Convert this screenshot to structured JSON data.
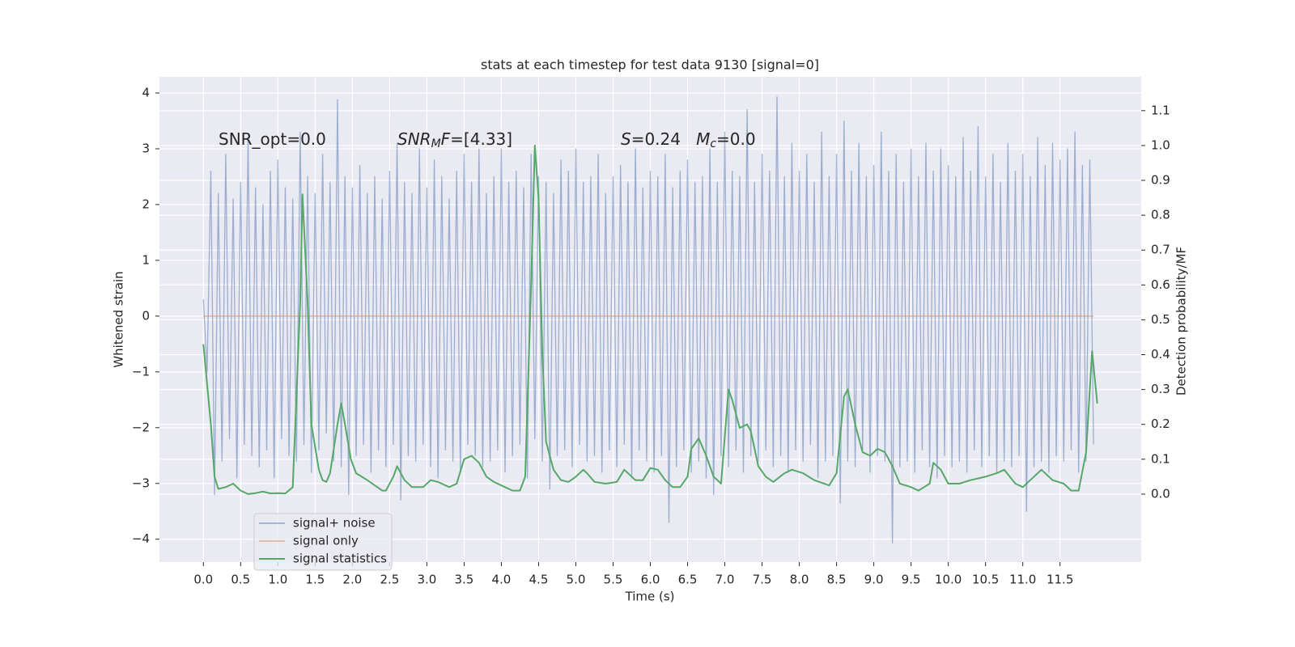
{
  "chart_data": {
    "type": "line",
    "title": "stats at each timestep for test data 9130 [signal=0]",
    "xlabel": "Time (s)",
    "ylabel": "Whitened strain",
    "y2label": "Detection probability/MF",
    "xlim": [
      -0.59,
      12.59
    ],
    "ylim": [
      -4.41,
      4.29
    ],
    "y2lim": [
      -0.195,
      1.197
    ],
    "xticks": [
      {
        "value": 0,
        "label": "0.0"
      },
      0.5,
      {
        "value": 1,
        "label": "1.0"
      },
      1.5,
      {
        "value": 2,
        "label": "2.0"
      },
      2.5,
      {
        "value": 3,
        "label": "3.0"
      },
      3.5,
      {
        "value": 4,
        "label": "4.0"
      },
      4.5,
      {
        "value": 5,
        "label": "5.0"
      },
      5.5,
      {
        "value": 6,
        "label": "6.0"
      },
      6.5,
      {
        "value": 7,
        "label": "7.0"
      },
      7.5,
      {
        "value": 8,
        "label": "8.0"
      },
      8.5,
      {
        "value": 9,
        "label": "9.0"
      },
      9.5,
      {
        "value": 10,
        "label": "10.0"
      },
      10.5,
      {
        "value": 11,
        "label": "11.0"
      },
      11.5
    ],
    "yticks": [
      {
        "value": -4,
        "label": "−4"
      },
      {
        "value": -3,
        "label": "−3"
      },
      {
        "value": -2,
        "label": "−2"
      },
      {
        "value": -1,
        "label": "−1"
      },
      0,
      1,
      2,
      3,
      4
    ],
    "y2ticks": [
      {
        "value": 0,
        "label": "0.0"
      },
      0.1,
      0.2,
      0.3,
      0.4,
      0.5,
      0.6,
      0.7,
      0.8,
      0.9,
      {
        "value": 1,
        "label": "1.0"
      },
      1.1
    ],
    "grid": true,
    "legend_loc": "lower left",
    "annotations": [
      [
        {
          "text": "SNR_opt=0.0"
        }
      ],
      [
        {
          "text": "SNR",
          "italic": true
        },
        {
          "text": "M",
          "italic": true,
          "sub": true
        },
        {
          "text": "F",
          "italic": true
        },
        {
          "text": "=[4.33]"
        }
      ],
      [
        {
          "text": "S",
          "italic": true
        },
        {
          "text": "=0.24   "
        },
        {
          "text": "M",
          "italic": true
        },
        {
          "text": "c",
          "italic": true,
          "sub": true
        },
        {
          "text": "=0.0"
        }
      ]
    ],
    "series": [
      {
        "name": "signal+ noise",
        "color": "#4c72b0",
        "x": [
          0,
          0.05,
          0.1,
          0.15,
          0.2,
          0.25,
          0.3,
          0.35,
          0.4,
          0.45,
          0.5,
          0.55,
          0.6,
          0.65,
          0.7,
          0.75,
          0.8,
          0.85,
          0.9,
          0.95,
          1,
          1.05,
          1.1,
          1.15,
          1.2,
          1.25,
          1.3,
          1.35,
          1.4,
          1.45,
          1.5,
          1.55,
          1.6,
          1.65,
          1.7,
          1.75,
          1.8,
          1.85,
          1.9,
          1.95,
          2,
          2.05,
          2.1,
          2.15,
          2.2,
          2.25,
          2.3,
          2.35,
          2.4,
          2.45,
          2.5,
          2.55,
          2.6,
          2.65,
          2.7,
          2.75,
          2.8,
          2.85,
          2.9,
          2.95,
          3,
          3.05,
          3.1,
          3.15,
          3.2,
          3.25,
          3.3,
          3.35,
          3.4,
          3.45,
          3.5,
          3.55,
          3.6,
          3.65,
          3.7,
          3.75,
          3.8,
          3.85,
          3.9,
          3.95,
          4,
          4.05,
          4.1,
          4.15,
          4.2,
          4.25,
          4.3,
          4.35,
          4.4,
          4.45,
          4.5,
          4.55,
          4.6,
          4.65,
          4.7,
          4.75,
          4.8,
          4.85,
          4.9,
          4.95,
          5,
          5.05,
          5.1,
          5.15,
          5.2,
          5.25,
          5.3,
          5.35,
          5.4,
          5.45,
          5.5,
          5.55,
          5.6,
          5.65,
          5.7,
          5.75,
          5.8,
          5.85,
          5.9,
          5.95,
          6,
          6.05,
          6.1,
          6.15,
          6.2,
          6.25,
          6.3,
          6.35,
          6.4,
          6.45,
          6.5,
          6.55,
          6.6,
          6.65,
          6.7,
          6.75,
          6.8,
          6.85,
          6.9,
          6.95,
          7,
          7.05,
          7.1,
          7.15,
          7.2,
          7.25,
          7.3,
          7.35,
          7.4,
          7.45,
          7.5,
          7.55,
          7.6,
          7.65,
          7.7,
          7.75,
          7.8,
          7.85,
          7.9,
          7.95,
          8,
          8.05,
          8.1,
          8.15,
          8.2,
          8.25,
          8.3,
          8.35,
          8.4,
          8.45,
          8.5,
          8.55,
          8.6,
          8.65,
          8.7,
          8.75,
          8.8,
          8.85,
          8.9,
          8.95,
          9,
          9.05,
          9.1,
          9.15,
          9.2,
          9.25,
          9.3,
          9.35,
          9.4,
          9.45,
          9.5,
          9.55,
          9.6,
          9.65,
          9.7,
          9.75,
          9.8,
          9.85,
          9.9,
          9.95,
          10,
          10.05,
          10.1,
          10.15,
          10.2,
          10.25,
          10.3,
          10.35,
          10.4,
          10.45,
          10.5,
          10.55,
          10.6,
          10.65,
          10.7,
          10.75,
          10.8,
          10.85,
          10.9,
          10.95,
          11,
          11.05,
          11.1,
          11.15,
          11.2,
          11.25,
          11.3,
          11.35,
          11.4,
          11.45,
          11.5,
          11.55,
          11.6,
          11.65,
          11.7,
          11.75,
          11.8,
          11.85,
          11.9,
          11.95
        ],
        "values": [
          0.3,
          -1.0,
          2.6,
          -3.2,
          2.2,
          -2.6,
          2.9,
          -2.2,
          2.1,
          -2.9,
          2.4,
          -2.3,
          3.2,
          -2.5,
          2.3,
          -2.7,
          2.0,
          -2.4,
          2.6,
          -2.9,
          2.8,
          -2.2,
          2.3,
          -2.5,
          2.1,
          -2.6,
          3.3,
          -2.3,
          2.5,
          -2.8,
          2.2,
          -2.4,
          2.9,
          -2.1,
          2.4,
          -2.6,
          3.88,
          -2.7,
          2.5,
          -3.2,
          2.3,
          -2.5,
          2.7,
          -2.3,
          2.2,
          -2.8,
          2.5,
          -2.4,
          2.1,
          -2.7,
          2.6,
          -2.3,
          3.1,
          -3.3,
          2.4,
          -2.5,
          2.2,
          -2.6,
          3.0,
          -2.3,
          2.3,
          -2.7,
          2.8,
          -2.9,
          2.5,
          -2.4,
          2.1,
          -2.6,
          2.6,
          -2.8,
          2.9,
          -2.3,
          2.4,
          -2.5,
          3.0,
          -2.7,
          2.2,
          -2.6,
          2.5,
          -2.4,
          3.0,
          -2.8,
          2.4,
          -2.5,
          2.6,
          -2.3,
          2.3,
          -2.9,
          2.9,
          -2.2,
          2.5,
          -2.6,
          2.4,
          -3.1,
          2.2,
          -2.5,
          2.8,
          -2.4,
          2.6,
          -2.7,
          3.0,
          -2.3,
          2.4,
          -2.6,
          2.5,
          -2.5,
          2.9,
          -2.8,
          2.2,
          -2.4,
          2.5,
          -2.7,
          2.7,
          -2.3,
          2.4,
          -2.9,
          3.0,
          -2.4,
          2.3,
          -2.6,
          2.6,
          -2.8,
          2.5,
          -2.5,
          2.9,
          -3.7,
          2.3,
          -2.7,
          2.6,
          -2.4,
          2.8,
          -2.8,
          2.4,
          -2.6,
          2.5,
          -2.9,
          3.0,
          -3.2,
          2.4,
          -2.5,
          3.3,
          -2.7,
          2.6,
          -2.4,
          2.5,
          -2.8,
          3.7,
          -2.5,
          2.4,
          -2.6,
          2.9,
          -2.4,
          2.6,
          -2.7,
          3.93,
          -2.5,
          2.5,
          -2.8,
          3.1,
          -2.4,
          2.6,
          -2.6,
          2.9,
          -2.3,
          2.4,
          -2.9,
          3.3,
          -2.6,
          2.5,
          -2.5,
          2.9,
          -3.35,
          3.5,
          -2.6,
          2.6,
          -2.7,
          3.1,
          -2.4,
          2.5,
          -2.8,
          2.7,
          -2.5,
          3.3,
          -2.6,
          2.6,
          -4.07,
          2.9,
          -2.7,
          2.4,
          -2.6,
          3.0,
          -2.8,
          2.5,
          -2.4,
          3.1,
          -2.7,
          2.6,
          -2.9,
          3.0,
          -2.5,
          2.7,
          -2.7,
          2.5,
          -2.6,
          3.2,
          -2.8,
          2.6,
          -2.4,
          3.4,
          -2.7,
          2.5,
          -2.5,
          2.9,
          -2.8,
          2.4,
          -2.6,
          3.1,
          -2.7,
          2.6,
          -2.5,
          2.9,
          -3.5,
          2.5,
          -2.7,
          3.2,
          -2.6,
          2.7,
          -2.8,
          3.1,
          -2.5,
          2.8,
          -2.6,
          3.0,
          -2.4,
          3.3,
          -2.8,
          2.7,
          -2.6,
          2.8,
          -2.3
        ]
      },
      {
        "name": "signal only",
        "color": "#dd8452",
        "x": [
          0,
          11.95
        ],
        "values": [
          0,
          0
        ]
      },
      {
        "name": "signal statistics",
        "color": "#55a868",
        "axis": "y2",
        "x": [
          0,
          0.1,
          0.15,
          0.2,
          0.3,
          0.4,
          0.5,
          0.6,
          0.7,
          0.8,
          0.9,
          1.0,
          1.1,
          1.2,
          1.3,
          1.33,
          1.4,
          1.45,
          1.55,
          1.6,
          1.65,
          1.7,
          1.8,
          1.85,
          1.9,
          1.98,
          2.05,
          2.2,
          2.4,
          2.45,
          2.55,
          2.6,
          2.7,
          2.8,
          2.95,
          3.05,
          3.15,
          3.3,
          3.4,
          3.5,
          3.6,
          3.7,
          3.8,
          3.9,
          4.05,
          4.15,
          4.25,
          4.32,
          4.4,
          4.45,
          4.5,
          4.55,
          4.6,
          4.7,
          4.8,
          4.9,
          5.0,
          5.1,
          5.15,
          5.25,
          5.4,
          5.55,
          5.65,
          5.8,
          5.9,
          6.0,
          6.1,
          6.2,
          6.3,
          6.4,
          6.5,
          6.55,
          6.65,
          6.75,
          6.85,
          6.95,
          7.05,
          7.1,
          7.2,
          7.3,
          7.35,
          7.45,
          7.55,
          7.65,
          7.8,
          7.9,
          8.05,
          8.2,
          8.4,
          8.5,
          8.6,
          8.65,
          8.75,
          8.85,
          8.95,
          9.05,
          9.15,
          9.25,
          9.35,
          9.5,
          9.6,
          9.75,
          9.8,
          9.9,
          10.0,
          10.15,
          10.3,
          10.5,
          10.65,
          10.75,
          10.9,
          11.0,
          11.1,
          11.25,
          11.4,
          11.55,
          11.65,
          11.75,
          11.85,
          11.93,
          12.0
        ],
        "values": [
          0.43,
          0.2,
          0.05,
          0.015,
          0.02,
          0.03,
          0.01,
          0.0,
          0.003,
          0.007,
          0.002,
          0.003,
          0.002,
          0.02,
          0.55,
          0.86,
          0.55,
          0.2,
          0.07,
          0.04,
          0.035,
          0.06,
          0.2,
          0.26,
          0.2,
          0.1,
          0.06,
          0.04,
          0.01,
          0.01,
          0.05,
          0.08,
          0.04,
          0.02,
          0.02,
          0.04,
          0.035,
          0.02,
          0.03,
          0.1,
          0.11,
          0.09,
          0.05,
          0.035,
          0.02,
          0.01,
          0.01,
          0.05,
          0.6,
          1.0,
          0.85,
          0.4,
          0.15,
          0.07,
          0.04,
          0.035,
          0.05,
          0.07,
          0.06,
          0.035,
          0.03,
          0.035,
          0.07,
          0.04,
          0.04,
          0.075,
          0.07,
          0.04,
          0.02,
          0.02,
          0.05,
          0.13,
          0.16,
          0.11,
          0.05,
          0.03,
          0.3,
          0.27,
          0.19,
          0.2,
          0.18,
          0.08,
          0.05,
          0.035,
          0.06,
          0.07,
          0.06,
          0.04,
          0.025,
          0.06,
          0.28,
          0.3,
          0.2,
          0.12,
          0.11,
          0.13,
          0.12,
          0.08,
          0.03,
          0.02,
          0.01,
          0.03,
          0.09,
          0.07,
          0.03,
          0.03,
          0.04,
          0.05,
          0.06,
          0.07,
          0.03,
          0.02,
          0.04,
          0.07,
          0.04,
          0.03,
          0.01,
          0.01,
          0.12,
          0.41,
          0.26
        ]
      }
    ]
  }
}
